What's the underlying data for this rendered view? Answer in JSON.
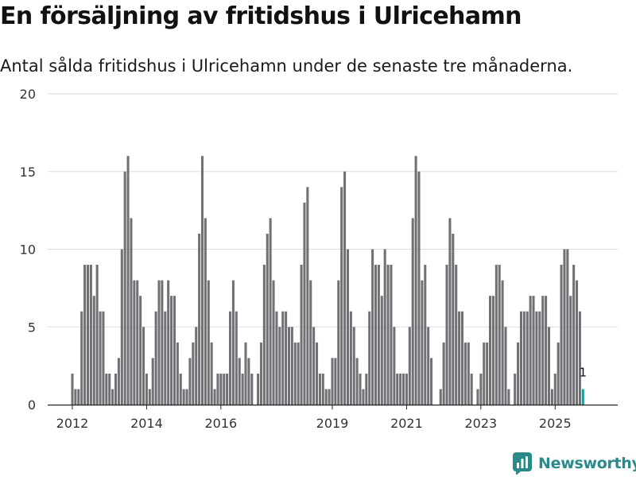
{
  "title": "En försäljning av fritidshus i Ulricehamn",
  "subtitle": "Antal sålda fritidshus i Ulricehamn under de senaste tre månaderna.",
  "brand": "Newsworthy",
  "colors": {
    "bar": "#717075",
    "highlight": "#1a9e99",
    "grid": "#dddddd",
    "axis": "#222222",
    "brand": "#2a8a8a"
  },
  "chart_data": {
    "type": "bar",
    "x_start": "2012-01",
    "x_end": "2026-01",
    "x_ticks": [
      "2012",
      "2014",
      "2016",
      "2019",
      "2021",
      "2023",
      "2025"
    ],
    "ylim": [
      0,
      20
    ],
    "y_ticks": [
      0,
      5,
      10,
      15,
      20
    ],
    "grid": true,
    "values": [
      2,
      1,
      1,
      6,
      9,
      9,
      9,
      7,
      9,
      6,
      6,
      2,
      2,
      1,
      2,
      3,
      10,
      15,
      16,
      12,
      8,
      8,
      7,
      5,
      2,
      1,
      3,
      6,
      8,
      8,
      6,
      8,
      7,
      7,
      4,
      2,
      1,
      1,
      3,
      4,
      5,
      11,
      16,
      12,
      8,
      4,
      1,
      2,
      2,
      2,
      2,
      6,
      8,
      6,
      3,
      2,
      4,
      3,
      2,
      0,
      2,
      4,
      9,
      11,
      12,
      8,
      6,
      5,
      6,
      6,
      5,
      5,
      4,
      4,
      9,
      13,
      14,
      8,
      5,
      4,
      2,
      2,
      1,
      1,
      3,
      3,
      8,
      14,
      15,
      10,
      6,
      5,
      3,
      2,
      1,
      2,
      6,
      10,
      9,
      9,
      7,
      10,
      9,
      9,
      5,
      2,
      2,
      2,
      2,
      5,
      12,
      16,
      15,
      8,
      9,
      5,
      3,
      0,
      0,
      1,
      4,
      9,
      12,
      11,
      9,
      6,
      6,
      4,
      4,
      2,
      0,
      1,
      2,
      4,
      4,
      7,
      7,
      9,
      9,
      8,
      5,
      1,
      0,
      2,
      4,
      6,
      6,
      6,
      7,
      7,
      6,
      6,
      7,
      7,
      5,
      1,
      2,
      4,
      9,
      10,
      10,
      7,
      9,
      8,
      6,
      1
    ],
    "highlight_index": 165,
    "annotation": "1"
  }
}
